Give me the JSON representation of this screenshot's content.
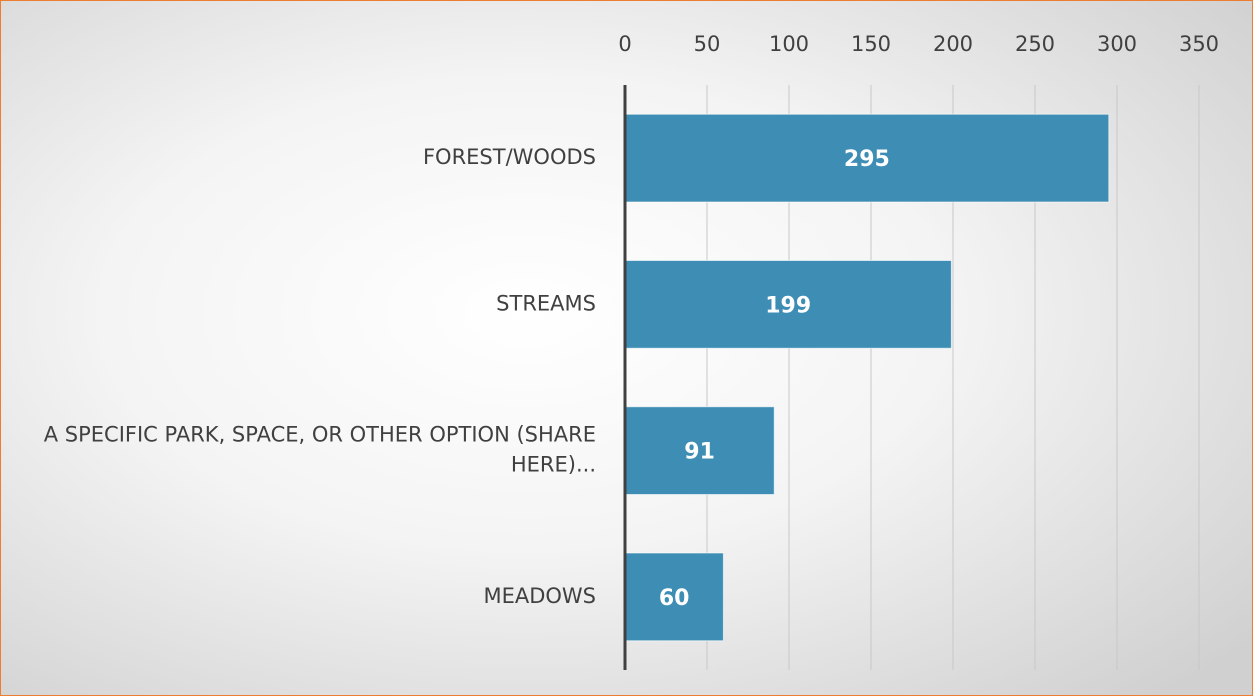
{
  "chart_data": {
    "type": "bar",
    "orientation": "horizontal",
    "categories": [
      "FOREST/WOODS",
      "STREAMS",
      "A SPECIFIC PARK, SPACE, OR OTHER OPTION (SHARE HERE)...",
      "MEADOWS"
    ],
    "values": [
      295,
      199,
      91,
      60
    ],
    "color": "#3d8db5",
    "ylim": [
      0,
      350
    ],
    "yticks": [
      0,
      50,
      100,
      150,
      200,
      250,
      300,
      350
    ],
    "grid": true
  }
}
